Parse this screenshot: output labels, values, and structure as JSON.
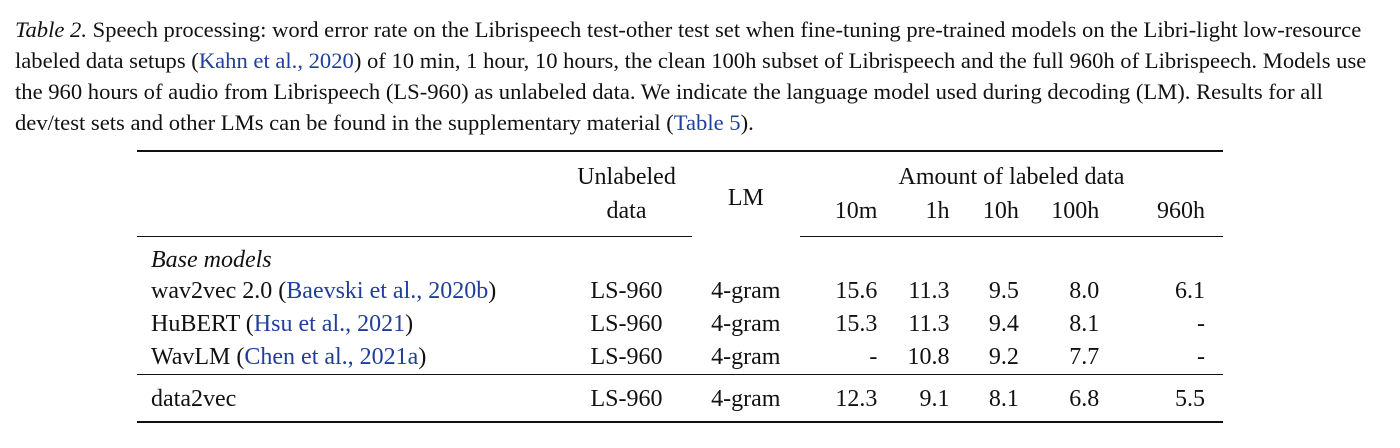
{
  "caption": {
    "label": "Table 2.",
    "text_1": " Speech processing: word error rate on the Librispeech test-other test set when fine-tuning pre-trained models on the Libri-light low-resource labeled data setups (",
    "cite_1": "Kahn et al., 2020",
    "text_2": ") of 10 min, 1 hour, 10 hours, the clean 100h subset of Librispeech and the full 960h of Librispeech. Models use the 960 hours of audio from Librispeech (LS-960) as unlabeled data. We indicate the language model used during decoding (LM). Results for all dev/test sets and other LMs can be found in the supplementary material (",
    "cite_2": "Table 5",
    "text_3": ")."
  },
  "table": {
    "headers": {
      "unlabeled_1": "Unlabeled",
      "unlabeled_2": "data",
      "lm": "LM",
      "amount": "Amount of labeled data",
      "cols": [
        "10m",
        "1h",
        "10h",
        "100h",
        "960h"
      ]
    },
    "group_label": "Base models",
    "rows": [
      {
        "model": "wav2vec 2.0 (",
        "cite": "Baevski et al., 2020b",
        "close": ")",
        "unlabeled": "LS-960",
        "lm": "4-gram",
        "values": [
          "15.6",
          "11.3",
          "9.5",
          "8.0",
          "6.1"
        ]
      },
      {
        "model": "HuBERT (",
        "cite": "Hsu et al., 2021",
        "close": ")",
        "unlabeled": "LS-960",
        "lm": "4-gram",
        "values": [
          "15.3",
          "11.3",
          "9.4",
          "8.1",
          "-"
        ]
      },
      {
        "model": "WavLM (",
        "cite": "Chen et al., 2021a",
        "close": ")",
        "unlabeled": "LS-960",
        "lm": "4-gram",
        "values": [
          "-",
          "10.8",
          "9.2",
          "7.7",
          "-"
        ]
      }
    ],
    "final_row": {
      "model": "data2vec",
      "unlabeled": "LS-960",
      "lm": "4-gram",
      "values": [
        "12.3",
        "9.1",
        "8.1",
        "6.8",
        "5.5"
      ]
    }
  }
}
